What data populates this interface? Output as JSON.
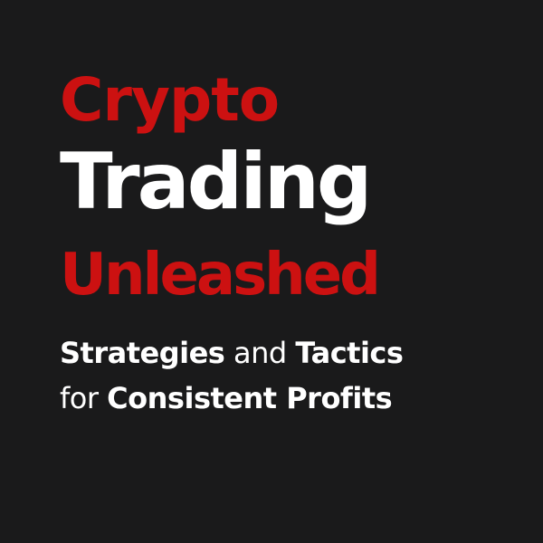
{
  "cover": {
    "title": {
      "line1": "Crypto",
      "line2": "Trading",
      "line3": "Unleashed"
    },
    "subtitle": {
      "line1": {
        "part1": "Strategies",
        "part2": " and ",
        "part3": "Tactics"
      },
      "line2": {
        "part1": "for ",
        "part2": "Consistent Profits"
      }
    }
  },
  "colors": {
    "background": "#1a1a1b",
    "accent_red": "#cc1111",
    "text_white": "#ffffff"
  }
}
